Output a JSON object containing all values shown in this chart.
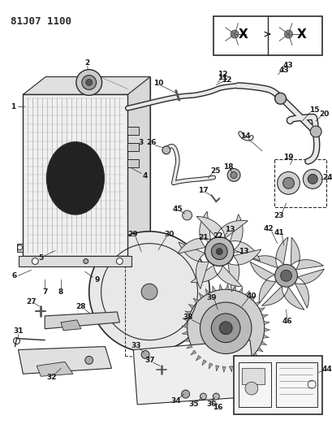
{
  "title": "81J07 1100",
  "bg_color": "#ffffff",
  "line_color": "#2a2a2a",
  "fig_width": 4.1,
  "fig_height": 5.33,
  "dpi": 100,
  "label_font_size": 6.5,
  "title_font_size": 9
}
